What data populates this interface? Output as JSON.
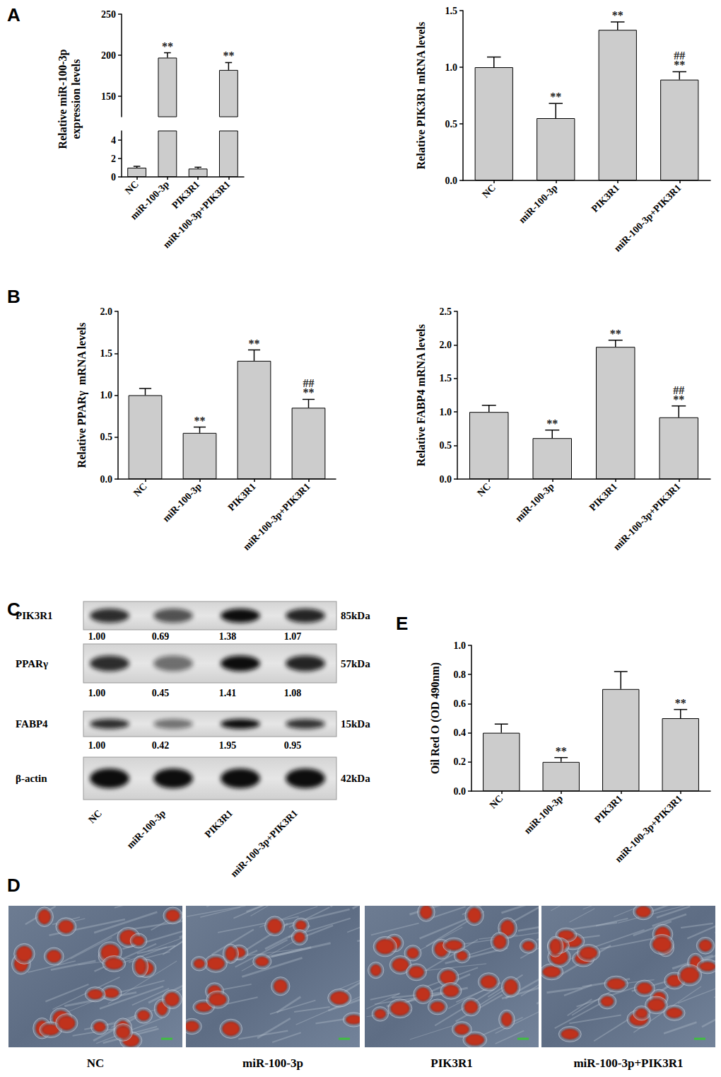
{
  "panel_labels": [
    "A",
    "B",
    "C",
    "D",
    "E"
  ],
  "chart_data": [
    {
      "type": "bar",
      "y_label": "Relative miR-100-3p\nexpression levels",
      "categories": [
        "NC",
        "miR-100-3p",
        "PIK3R1",
        "miR-100-3p+PIK3R1"
      ],
      "values": [
        1.0,
        197,
        0.9,
        182
      ],
      "errors": [
        0.15,
        6,
        0.15,
        9
      ],
      "annotations": [
        null,
        [
          "**"
        ],
        null,
        [
          "**"
        ]
      ],
      "color": "#cccccc",
      "segments": [
        {
          "ylim": [
            0,
            5
          ],
          "yticks": [
            0,
            2,
            4
          ]
        },
        {
          "ylim": [
            125,
            250
          ],
          "yticks": [
            150,
            200,
            250
          ]
        }
      ],
      "grid": false
    },
    {
      "type": "bar",
      "y_label": "Relative PIK3R1 mRNA levels",
      "categories": [
        "NC",
        "miR-100-3p",
        "PIK3R1",
        "miR-100-3p+PIK3R1"
      ],
      "values": [
        1.0,
        0.55,
        1.33,
        0.89
      ],
      "errors": [
        0.09,
        0.13,
        0.07,
        0.07
      ],
      "annotations": [
        null,
        [
          "**"
        ],
        [
          "**"
        ],
        [
          "##",
          "**"
        ]
      ],
      "color": "#cccccc",
      "ylim": [
        0,
        1.5
      ],
      "yticks": [
        {
          "value": 0,
          "label": "0.0"
        },
        {
          "value": 0.5,
          "label": "0.5"
        },
        {
          "value": 1,
          "label": "1.0"
        },
        {
          "value": 1.5,
          "label": "1.5"
        }
      ],
      "grid": false
    },
    {
      "type": "bar",
      "y_label": "Relative PPARγ  mRNA levels",
      "categories": [
        "NC",
        "miR-100-3p",
        "PIK3R1",
        "miR-100-3p+PIK3R1"
      ],
      "values": [
        1.0,
        0.55,
        1.41,
        0.85
      ],
      "errors": [
        0.08,
        0.07,
        0.13,
        0.1
      ],
      "annotations": [
        null,
        [
          "**"
        ],
        [
          "**"
        ],
        [
          "##",
          "**"
        ]
      ],
      "color": "#cccccc",
      "ylim": [
        0,
        2
      ],
      "yticks": [
        {
          "value": 0,
          "label": "0.0"
        },
        {
          "value": 0.5,
          "label": "0.5"
        },
        {
          "value": 1,
          "label": "1.0"
        },
        {
          "value": 1.5,
          "label": "1.5"
        },
        {
          "value": 2,
          "label": "2.0"
        }
      ],
      "grid": false
    },
    {
      "type": "bar",
      "y_label": "Relative FABP4 mRNA levels",
      "categories": [
        "NC",
        "miR-100-3p",
        "PIK3R1",
        "miR-100-3p+PIK3R1"
      ],
      "values": [
        1.0,
        0.61,
        1.97,
        0.92
      ],
      "errors": [
        0.1,
        0.12,
        0.1,
        0.17
      ],
      "annotations": [
        null,
        [
          "**"
        ],
        [
          "**"
        ],
        [
          "##",
          "**"
        ]
      ],
      "color": "#cccccc",
      "ylim": [
        0,
        2.5
      ],
      "yticks": [
        {
          "value": 0,
          "label": "0.0"
        },
        {
          "value": 0.5,
          "label": "0.5"
        },
        {
          "value": 1,
          "label": "1.0"
        },
        {
          "value": 1.5,
          "label": "1.5"
        },
        {
          "value": 2,
          "label": "2.0"
        },
        {
          "value": 2.5,
          "label": "2.5"
        }
      ],
      "grid": false
    },
    {
      "type": "bar",
      "y_label": "Oil Red O (OD 490nm)",
      "categories": [
        "NC",
        "miR-100-3p",
        "PIK3R1",
        "miR-100-3p+PIK3R1"
      ],
      "values": [
        0.4,
        0.2,
        0.7,
        0.5
      ],
      "errors": [
        0.06,
        0.03,
        0.12,
        0.06
      ],
      "annotations": [
        null,
        [
          "**"
        ],
        null,
        [
          "**"
        ]
      ],
      "color": "#cccccc",
      "ylim": [
        0,
        1
      ],
      "yticks": [
        {
          "value": 0,
          "label": "0.0"
        },
        {
          "value": 0.2,
          "label": "0.2"
        },
        {
          "value": 0.4,
          "label": "0.4"
        },
        {
          "value": 0.6,
          "label": "0.6"
        },
        {
          "value": 0.8,
          "label": "0.8"
        },
        {
          "value": 1,
          "label": "1.0"
        }
      ],
      "grid": false
    }
  ],
  "western_blot": {
    "lanes": [
      "NC",
      "miR-100-3p",
      "PIK3R1",
      "miR-100-3p+PIK3R1"
    ],
    "rows": [
      {
        "name": "PIK3R1",
        "size": "85kDa",
        "values": [
          "1.00",
          "0.69",
          "1.38",
          "1.07"
        ]
      },
      {
        "name": "PPARγ",
        "size": "57kDa",
        "values": [
          "1.00",
          "0.45",
          "1.41",
          "1.08"
        ]
      },
      {
        "name": "FABP4",
        "size": "15kDa",
        "values": [
          "1.00",
          "0.42",
          "1.95",
          "0.95"
        ]
      },
      {
        "name": "β-actin",
        "size": "42kDa"
      }
    ]
  },
  "microscopy": {
    "images": [
      "NC",
      "miR-100-3p",
      "PIK3R1",
      "miR-100-3p+PIK3R1"
    ]
  }
}
